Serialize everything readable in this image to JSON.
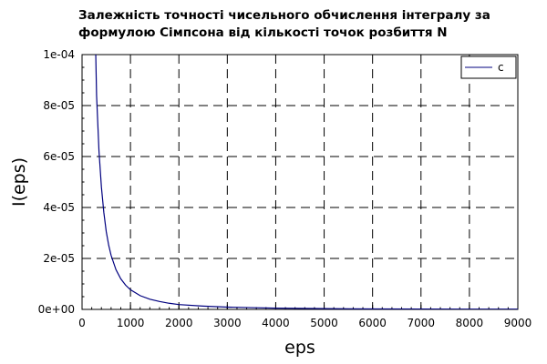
{
  "chart_data": {
    "type": "line",
    "title": [
      "Залежність точності чисельного обчислення інтегралу за",
      "формулою Сімпсона від кількості точок розбиття N"
    ],
    "xlabel": "eps",
    "ylabel": "I(eps)",
    "xlim": [
      0,
      9000
    ],
    "ylim": [
      0,
      0.0001
    ],
    "x_ticks": [
      0,
      1000,
      2000,
      3000,
      4000,
      5000,
      6000,
      7000,
      8000,
      9000
    ],
    "x_tick_labels": [
      "0",
      "1000",
      "2000",
      "3000",
      "4000",
      "5000",
      "6000",
      "7000",
      "8000",
      "9000"
    ],
    "y_ticks": [
      0,
      2e-05,
      4e-05,
      6e-05,
      8e-05,
      0.0001
    ],
    "y_tick_labels": [
      "0e+00",
      "2e-05",
      "4e-05",
      "6e-05",
      "8e-05",
      "1e-04"
    ],
    "grid": true,
    "legend_position": "top-right",
    "series": [
      {
        "name": "c",
        "color": "#00007f",
        "x": [
          280,
          300,
          350,
          400,
          450,
          500,
          550,
          600,
          700,
          800,
          900,
          1000,
          1200,
          1400,
          1600,
          1800,
          2000,
          2500,
          3000,
          3500,
          4000,
          4500,
          5000,
          6000,
          7000,
          8000,
          9000
        ],
        "y": [
          0.000103,
          8.4e-05,
          6.2e-05,
          4.8e-05,
          3.8e-05,
          3.05e-05,
          2.52e-05,
          2.12e-05,
          1.56e-05,
          1.2e-05,
          9.5e-06,
          7.7e-06,
          5.4e-06,
          4e-06,
          3.1e-06,
          2.4e-06,
          1.9e-06,
          1.3e-06,
          9e-07,
          7e-07,
          5e-07,
          4e-07,
          3e-07,
          2e-07,
          1.5e-07,
          1e-07,
          8e-08
        ]
      }
    ]
  }
}
